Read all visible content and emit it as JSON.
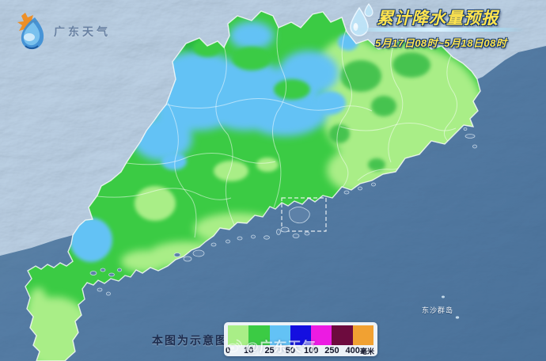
{
  "header": {
    "logo_text": "广东天气",
    "title": "累计降水量预报",
    "subtitle": "5月17日08时~5月18日08时"
  },
  "map": {
    "island_label": "东沙群岛",
    "note": "本图为示意图",
    "watermark": "@广东天气"
  },
  "legend": {
    "ticks": [
      "0",
      "10",
      "25",
      "50",
      "100",
      "250",
      "400"
    ],
    "unit": "毫米",
    "colors": [
      "#a9ee87",
      "#3bcb44",
      "#63c2f5",
      "#140fe0",
      "#ec1be2",
      "#6d0b3e",
      "#f1a132"
    ]
  },
  "theme": {
    "title_color": "#ffe44f",
    "sea_color": "#3d6a97",
    "terrain_color": "#8aadcf"
  }
}
